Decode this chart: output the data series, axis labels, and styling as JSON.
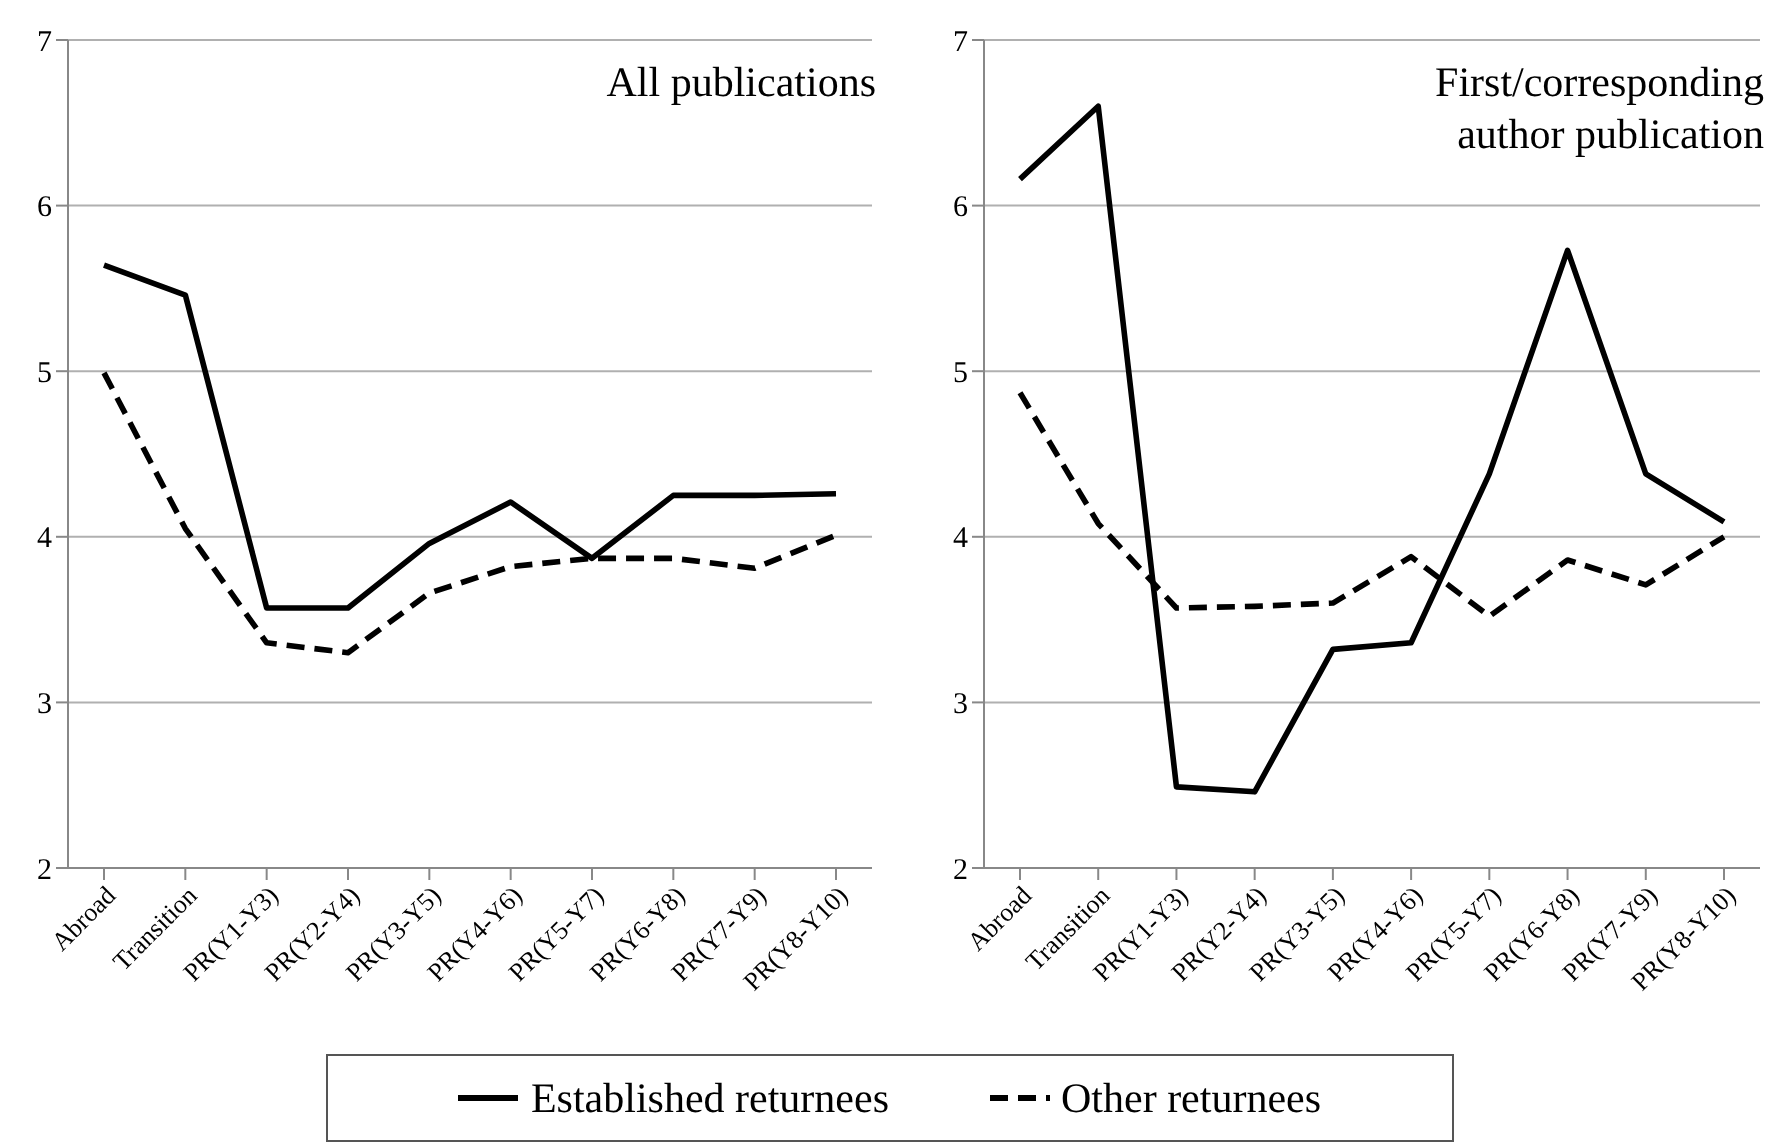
{
  "chart_data": [
    {
      "type": "line",
      "title": "All publications",
      "categories": [
        "Abroad",
        "Transition",
        "PR(Y1-Y3)",
        "PR(Y2-Y4)",
        "PR(Y3-Y5)",
        "PR(Y4-Y6)",
        "PR(Y5-Y7)",
        "PR(Y6-Y8)",
        "PR(Y7-Y9)",
        "PR(Y8-Y10)"
      ],
      "ylim": [
        2,
        7
      ],
      "yticks": [
        2,
        3,
        4,
        5,
        6,
        7
      ],
      "grid": "y",
      "legend": "bottom",
      "marker": "none",
      "series": [
        {
          "name": "Established returnees",
          "color": "#000000",
          "line_style": "solid",
          "values": [
            5.64,
            5.46,
            3.57,
            3.57,
            3.96,
            4.21,
            3.87,
            4.25,
            4.25,
            4.26
          ]
        },
        {
          "name": "Other returnees",
          "color": "#000000",
          "line_style": "dashed",
          "values": [
            4.99,
            4.05,
            3.36,
            3.3,
            3.66,
            3.82,
            3.87,
            3.87,
            3.81,
            4.01
          ]
        }
      ]
    },
    {
      "type": "line",
      "title": "First/corresponding author publication",
      "categories": [
        "Abroad",
        "Transition",
        "PR(Y1-Y3)",
        "PR(Y2-Y4)",
        "PR(Y3-Y5)",
        "PR(Y4-Y6)",
        "PR(Y5-Y7)",
        "PR(Y6-Y8)",
        "PR(Y7-Y9)",
        "PR(Y8-Y10)"
      ],
      "ylim": [
        2,
        7
      ],
      "yticks": [
        2,
        3,
        4,
        5,
        6,
        7
      ],
      "grid": "y",
      "marker": "none",
      "series": [
        {
          "color": "#000000",
          "line_style": "solid",
          "values": [
            6.16,
            6.6,
            2.49,
            2.46,
            3.32,
            3.36,
            4.38,
            5.73,
            4.38,
            4.09
          ]
        },
        {
          "color": "#000000",
          "line_style": "dashed",
          "values": [
            4.87,
            4.08,
            3.57,
            3.58,
            3.6,
            3.88,
            3.52,
            3.86,
            3.71,
            4.0
          ]
        }
      ]
    }
  ]
}
